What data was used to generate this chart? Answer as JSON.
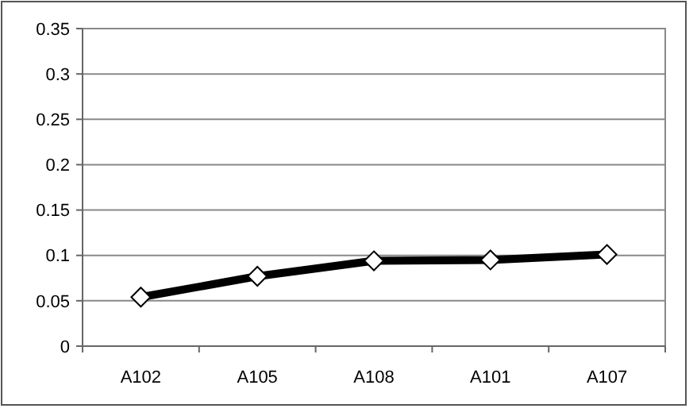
{
  "chart_data": {
    "type": "line",
    "categories": [
      "A102",
      "A105",
      "A108",
      "A101",
      "A107"
    ],
    "series": [
      {
        "color": "#000000",
        "values": [
          0.054,
          0.077,
          0.094,
          0.095,
          0.101
        ]
      }
    ],
    "ylim": [
      0,
      0.35
    ],
    "yticks": [
      0,
      0.05,
      0.1,
      0.15,
      0.2,
      0.25,
      0.3,
      0.35
    ],
    "grid": "y",
    "marker": "diamond",
    "line_style": "solid"
  }
}
